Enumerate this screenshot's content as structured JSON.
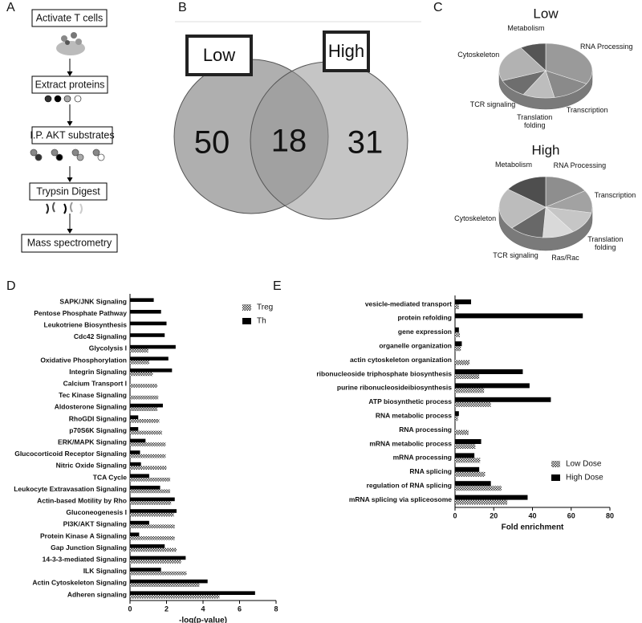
{
  "panel_labels": [
    "A",
    "B",
    "C",
    "D",
    "E"
  ],
  "workflow": {
    "steps": [
      "Activate T cells",
      "Extract proteins",
      "I.P. AKT substrates",
      "Trypsin Digest",
      "Mass spectrometry"
    ]
  },
  "chart_data": [
    {
      "type": "venn",
      "sets": [
        "Low",
        "High"
      ],
      "values": [
        50,
        18,
        31
      ]
    },
    {
      "type": "pie",
      "title": "Low",
      "categories": [
        "RNA Processing",
        "Transcription",
        "Translation folding",
        "TCR signaling",
        "Cytoskeleton",
        "Metabolism"
      ],
      "values": [
        33,
        14,
        11,
        11,
        22,
        9
      ],
      "colors": [
        "#9a9a9a",
        "#8a8a8a",
        "#bdbdbd",
        "#6e6e6e",
        "#b2b2b2",
        "#555555"
      ]
    },
    {
      "type": "pie",
      "title": "High",
      "categories": [
        "RNA Processing",
        "Transcription",
        "Translation folding",
        "Ras/Rac",
        "TCR signaling",
        "Cytoskeleton",
        "Metabolism"
      ],
      "values": [
        16,
        12,
        12,
        11,
        12,
        22,
        15
      ],
      "colors": [
        "#8e8e8e",
        "#a2a2a2",
        "#c6c6c6",
        "#d9d9d9",
        "#686868",
        "#bcbcbc",
        "#4e4e4e"
      ]
    },
    {
      "type": "hbar",
      "xlabel": "-log(p-value)",
      "categories": [
        "SAPK/JNK Signaling",
        "Pentose Phosphate Pathway",
        "Leukotriene Biosynthesis",
        "Cdc42 Signaling",
        "Glycolysis I",
        "Oxidative Phosphorylation",
        "Integrin Signaling",
        "Calcium Transport I",
        "Tec Kinase Signaling",
        "Aldosterone Signaling",
        "RhoGDI Signaling",
        "p70S6K Signaling",
        "ERK/MAPK Signaling",
        "Glucocorticoid Receptor Signaling",
        "Nitric Oxide Signaling",
        "TCA Cycle",
        "Leukocyte Extravasation Signaling",
        "Actin-based Motility by Rho",
        "Gluconeogenesis I",
        "PI3K/AKT Signaling",
        "Protein Kinase A Signaling",
        "Gap Junction Signaling",
        "14-3-3-mediated Signaling",
        "ILK Signaling",
        "Actin Cytoskeleton Signaling",
        "Adheren signaling"
      ],
      "series": [
        {
          "name": "Treg",
          "color": "#333333",
          "hatch": true,
          "values": [
            null,
            null,
            null,
            null,
            1.0,
            1.05,
            1.25,
            1.5,
            1.55,
            1.5,
            1.6,
            1.75,
            1.95,
            1.95,
            2.0,
            2.2,
            2.2,
            2.25,
            2.4,
            2.45,
            2.45,
            2.55,
            2.8,
            3.1,
            3.8,
            4.9
          ]
        },
        {
          "name": "Th",
          "color": "#000000",
          "hatch": false,
          "values": [
            1.3,
            1.7,
            2.0,
            1.9,
            2.5,
            2.1,
            2.3,
            null,
            null,
            1.8,
            0.45,
            0.45,
            0.85,
            0.55,
            0.6,
            1.05,
            1.65,
            2.45,
            2.55,
            1.05,
            0.5,
            1.9,
            3.05,
            1.7,
            4.25,
            6.85
          ]
        }
      ],
      "xlim": [
        0,
        8
      ],
      "xticks": [
        0,
        2,
        4,
        6,
        8
      ],
      "legend": "upper right"
    },
    {
      "type": "hbar",
      "xlabel": "Fold enrichment",
      "categories": [
        "vesicle-mediated transport",
        "protein refolding",
        "gene expression",
        "organelle organization",
        "actin cytoskeleton organization",
        "ribonucleoside triphosphate biosynthesis",
        "purine ribonucleosideibiosynthesis",
        "ATP biosynthetic process",
        "RNA metabolic process",
        "RNA processing",
        "mRNA metabolic process",
        "mRNA processing",
        "RNA splicing",
        "regulation of RNA splicing",
        "mRNA splicing via spliceosome"
      ],
      "series": [
        {
          "name": "Low Dose",
          "color": "#333333",
          "hatch": true,
          "values": [
            2,
            null,
            2.5,
            3,
            7.5,
            12.5,
            15,
            18.5,
            1.5,
            7,
            10.5,
            13,
            15.5,
            24,
            27
          ]
        },
        {
          "name": "High Dose",
          "color": "#000000",
          "hatch": false,
          "values": [
            8.3,
            66,
            2,
            3.5,
            null,
            35,
            38.5,
            49.5,
            2,
            null,
            13.5,
            10,
            12.5,
            18.5,
            37.5
          ]
        }
      ],
      "xlim": [
        0,
        80
      ],
      "xticks": [
        0,
        20,
        40,
        60,
        80
      ],
      "legend": "lower right"
    }
  ]
}
